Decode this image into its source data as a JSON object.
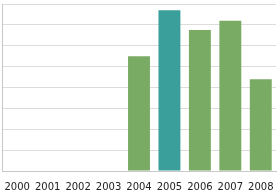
{
  "chart_data": {
    "type": "bar",
    "categories": [
      "2000",
      "2001",
      "2002",
      "2003",
      "2004",
      "2005",
      "2006",
      "2007",
      "2008"
    ],
    "values": [
      0,
      0,
      0,
      0,
      5.5,
      7.7,
      6.75,
      7.2,
      4.4
    ],
    "colors": [
      "#7aab64",
      "#7aab64",
      "#7aab64",
      "#7aab64",
      "#7aab64",
      "#3a9e9a",
      "#7aab64",
      "#7aab64",
      "#7aab64"
    ],
    "ylim": [
      0,
      8
    ],
    "yticks": [
      0,
      1,
      2,
      3,
      4,
      5,
      6,
      7,
      8
    ],
    "grid": true,
    "tick_labels": "x"
  }
}
